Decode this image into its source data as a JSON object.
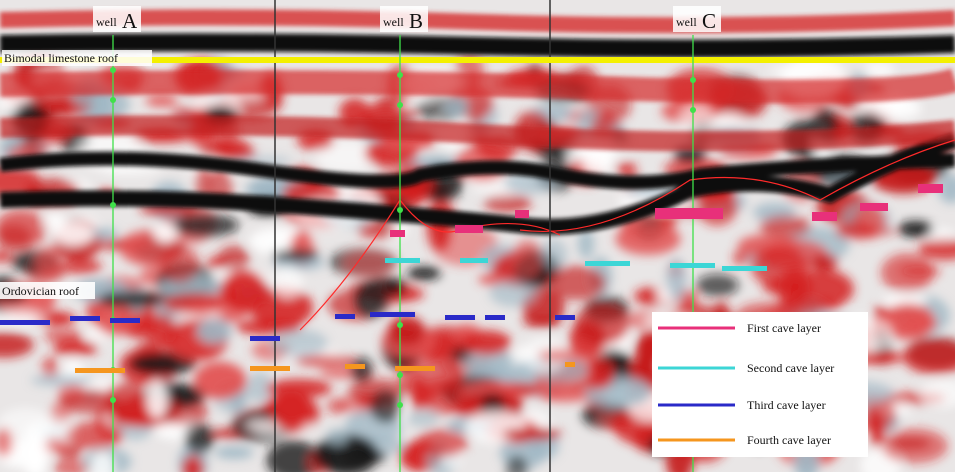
{
  "wells": [
    {
      "prefix": "well",
      "letter": "A"
    },
    {
      "prefix": "well",
      "letter": "B"
    },
    {
      "prefix": "well",
      "letter": "C"
    }
  ],
  "horizons": {
    "top": "Bimodal limestone roof",
    "bottom": "Ordovician roof"
  },
  "legend": [
    {
      "name": "First cave layer",
      "color": "#e8307a"
    },
    {
      "name": "Second cave layer",
      "color": "#3cd6d6"
    },
    {
      "name": "Third cave layer",
      "color": "#2a2ac8"
    },
    {
      "name": "Fourth cave layer",
      "color": "#f5961e"
    }
  ]
}
